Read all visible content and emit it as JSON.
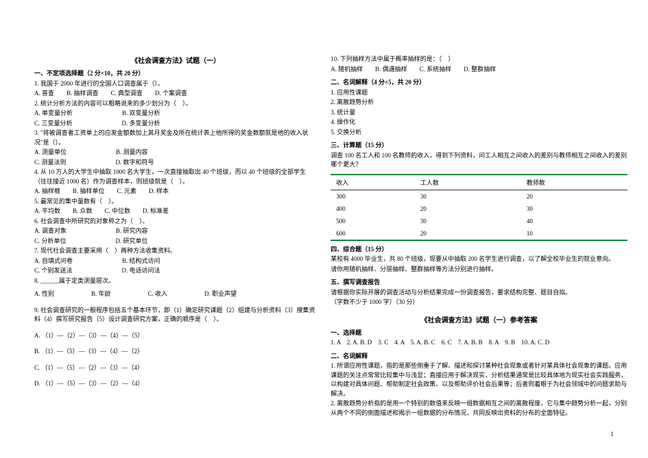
{
  "left": {
    "title": "《社会调查方法》试题（一）",
    "sec1": "一、不定项选择题（2 分×10，共 20 分）",
    "q1": "1. 我国于 2000 年进行的全国人口调查属于（）。",
    "q1opts": "A. 普查　　B. 抽样调查　　C. 典型调查　　D. 个案调查",
    "q2": "2. 统计分析方法的内容可以粗略说来的多少划分为（　）。",
    "q2a": "A. 单变量分析",
    "q2b": "B. 双变量分析",
    "q2c": "C. 三变量分析",
    "q2d": "D. 多变量分析",
    "q3": "3. \"将被调查者工资单上的应发金额数加上其月奖金及所在统计表上他所得的奖金数额就是他的收入状况\"是（）。",
    "q3a": "A. 测量单位",
    "q3b": "B. 测量内容",
    "q3c": "C. 测量法则",
    "q3d": "D. 数字和符号",
    "q4": "4. 从 10 万人的大学生中抽取 1000 名大学生，一次直接抽取出 40 个班级，而以 40 个班级的全部学生（往往接近 1000 名）作为调查样本，则班级就是（　）。",
    "q4opts": "A. 抽样框　　B. 抽样单位　　C. 元素　　D. 样本",
    "q5": "5. 最常见的集中量数有（　）。",
    "q5opts": "A. 平均数　　B. 众数　　C. 中位数　　D. 标准差",
    "q6": "6. 社会调查中所研究的对象称之为（　）。",
    "q6a": "A. 调查对象",
    "q6b": "B. 研究内容",
    "q6c": "C. 分析单位",
    "q6d": "D. 研究单位",
    "q7": "7. 现代社会调查主要采用（　）两种方法收集资料。",
    "q7a": "A. 自填式问卷",
    "q7b": "B. 结构式访问",
    "q7c": "C. 个别发送法",
    "q7d": "D. 电话访问法",
    "q8": "8. ______属于定类测量层次。",
    "q8a": "A. 性别",
    "q8b": "B. 年龄",
    "q8c": "C. 收入",
    "q8d": "D. 职业声望",
    "q9": "9. 社会调查研究的一般程序包括五个基本环节，即（1）确定研究课题（2）组建与分析资料（3）搜集资料（4）撰写研究报告（5）设计调查研究方案，正确的顺序是（　）。",
    "q9a": "A. （1）—（2）—（3）—（4）—（5）",
    "q9b": "B. （1）—（5）—（3）—（4）—（2）",
    "q9c": "C. （1）—（5）—（2）—（3）—（4）",
    "q9d": "D. （1）—（5）—（3）—（2）—（4）"
  },
  "right": {
    "q10": "10. 下列抽样方法中属于概率抽样的是：（　）",
    "q10opts": "A. 随机抽样　　B. 偶遇抽样　　C. 系统抽样　　D. 整群抽样",
    "sec2": "二、名词解释（4 分×5，共 20 分）",
    "n1": "1. 应用性课题",
    "n2": "2. 离散趋势分析",
    "n3": "3. 统计量",
    "n4": "4. 操作化",
    "n5": "5. 交换分析",
    "sec3": "三、计算题（15 分）",
    "sec3txt": "调查 100 名工人和 100 名教师的收入，得到下列资料，问工人相互之间收入的差别与教师相互之间收入的差别哪个更大？",
    "tbl": {
      "headers": [
        "收入",
        "工人数",
        "教师数"
      ],
      "rows": [
        [
          "300",
          "30",
          "20"
        ],
        [
          "400",
          "20",
          "30"
        ],
        [
          "500",
          "30",
          "40"
        ],
        [
          "600",
          "20",
          "10"
        ]
      ]
    },
    "sec4": "四、综合题（15 分）",
    "sec4txt1": "某校有 4000 毕业生，共 80 个班级，现要从中抽取 200 名学生进行调查，以了解全校毕业生的就业意向。",
    "sec4txt2": "请你用随机抽样、分层抽样、整群抽样等方法分别进行抽样。",
    "sec5": "五、撰写调查报告",
    "sec5txt": "请根据你实际开展的调查活动与分析结果完成一份调查报告，要求结构完整、题目自拟。",
    "sec5txt2": "（字数不少于 1000 字）（30 分）",
    "anstitle": "《社会调查方法》试题（一）参考答案",
    "ans1h": "一、选择题",
    "ans1": "1. A　2. A. B. D　3. C　4. A　5. A. B. C　6. C　7. A. B. B　8. A　9. B　10. A. C. D",
    "ans2h": "二、名词解释",
    "ans2_1": "1. 所谓应用性课题，指的是那些侧重于了解、描述和探讨某种社会现象或者针对某具体社会现象的课题。应用课题的关注点常常比较集中与浅显；直接应用于解决现实，分析结果通常是比较具体地为现实社会实践服务，以构建对具体问题、帮助制定社会政策、以及帮助评价社会后果等；后者则着眼于为社会领域中的问题求助与解决。",
    "ans2_2": "2. 离散趋势分析指的是用一个特别的数值来反映一组数据相互之间的离散程度，它与集中趋势分析一起，分别从两个不同的侧面描述和揭示一组数据的分布情况，共同反映出资料的分布的全面特征。"
  },
  "pagenum": "1"
}
